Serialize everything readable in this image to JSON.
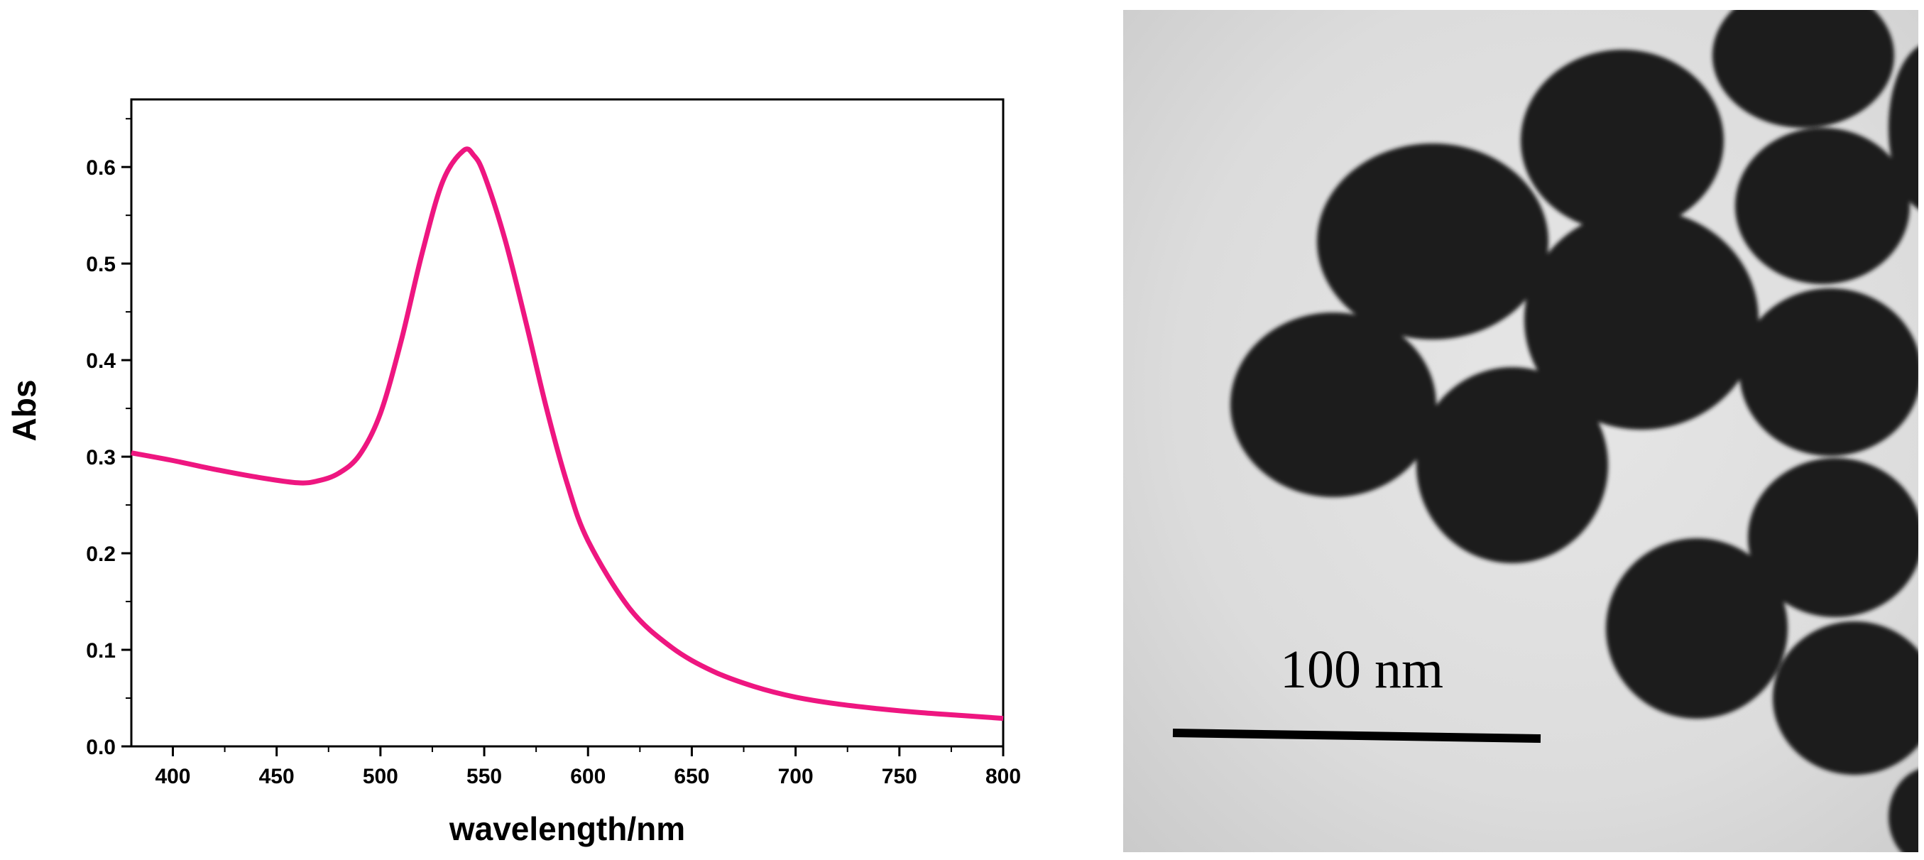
{
  "chart_data": {
    "type": "line",
    "title": "",
    "xlabel": "wavelength/nm",
    "ylabel": "Abs",
    "xlim": [
      380,
      800
    ],
    "ylim": [
      0,
      0.67
    ],
    "x_ticks": [
      400,
      450,
      500,
      550,
      600,
      650,
      700,
      750,
      800
    ],
    "x_tick_labels": [
      "400",
      "450",
      "500",
      "550",
      "600",
      "650",
      "700",
      "750",
      "800"
    ],
    "y_ticks": [
      0.0,
      0.1,
      0.2,
      0.3,
      0.4,
      0.5,
      0.6
    ],
    "y_tick_labels": [
      "0.0",
      "0.1",
      "0.2",
      "0.3",
      "0.4",
      "0.5",
      "0.6"
    ],
    "grid": false,
    "legend": "none",
    "series": [
      {
        "color": "#ee1680",
        "x": [
          380,
          400,
          420,
          440,
          460,
          470,
          480,
          490,
          500,
          510,
          520,
          530,
          540,
          545,
          550,
          560,
          570,
          580,
          590,
          600,
          620,
          640,
          660,
          680,
          700,
          720,
          740,
          760,
          780,
          800
        ],
        "y": [
          0.304,
          0.296,
          0.287,
          0.279,
          0.273,
          0.275,
          0.283,
          0.302,
          0.345,
          0.42,
          0.51,
          0.585,
          0.617,
          0.612,
          0.592,
          0.525,
          0.44,
          0.35,
          0.272,
          0.213,
          0.143,
          0.103,
          0.078,
          0.062,
          0.051,
          0.044,
          0.039,
          0.035,
          0.032,
          0.029
        ]
      }
    ]
  },
  "micrograph": {
    "scale_bar_label": "100 nm"
  }
}
